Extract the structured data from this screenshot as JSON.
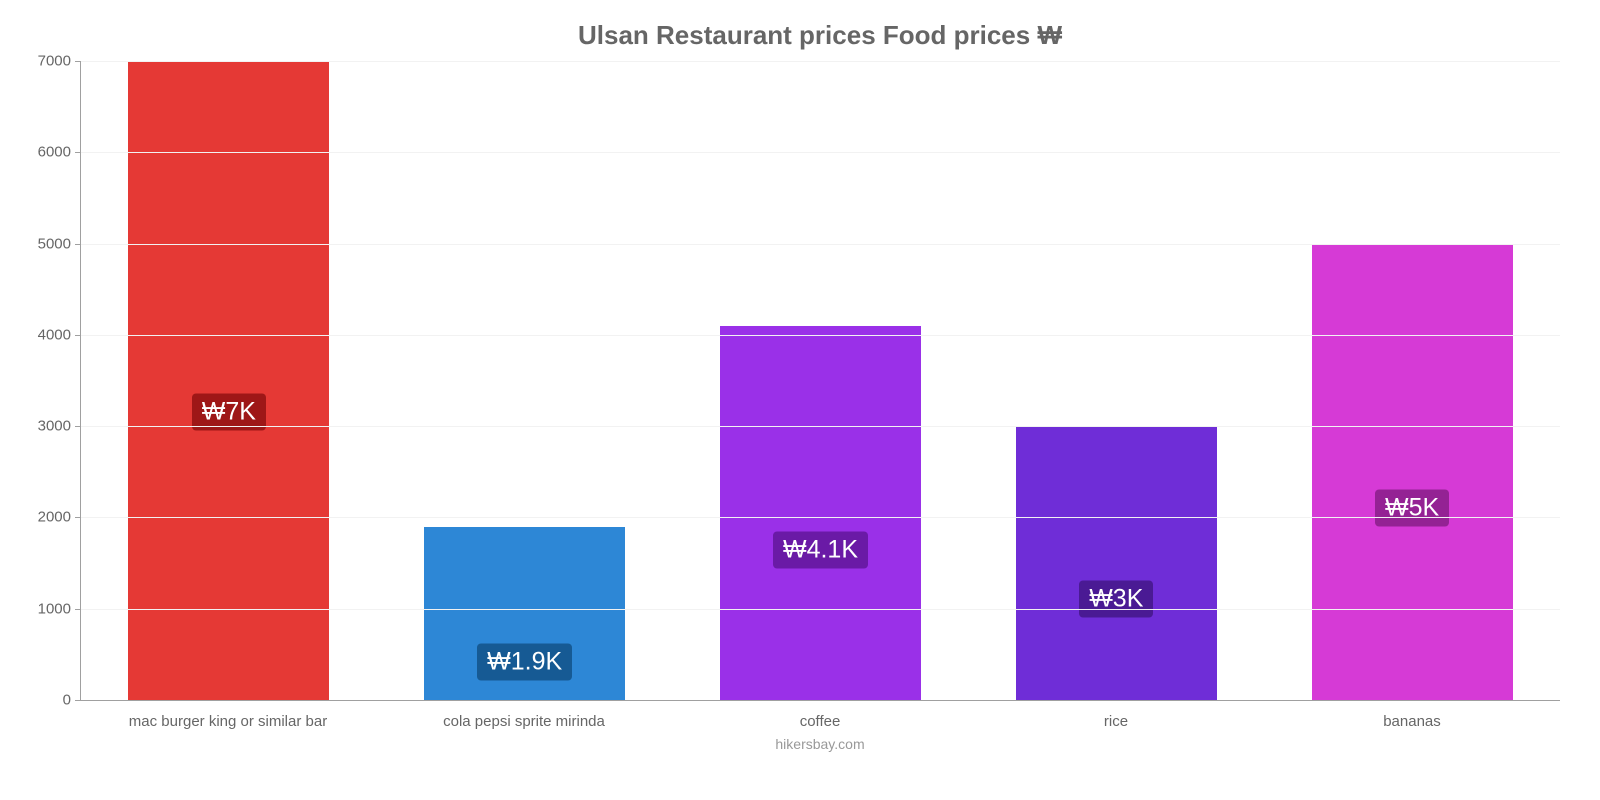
{
  "chart": {
    "type": "bar",
    "title": "Ulsan Restaurant prices Food prices ₩",
    "title_fontsize": 26,
    "title_color": "#666666",
    "footer": "hikersbay.com",
    "footer_fontsize": 14,
    "footer_color": "#999999",
    "background_color": "#ffffff",
    "grid_color": "#f2f2f2",
    "axis_line_color": "#a0a0a0",
    "label_fontsize": 15,
    "label_color": "#666666",
    "ylim": [
      0,
      7000
    ],
    "ytick_step": 1000,
    "yticks": [
      0,
      1000,
      2000,
      3000,
      4000,
      5000,
      6000,
      7000
    ],
    "bar_width": 0.68,
    "value_label_fontsize": 25,
    "categories": [
      "mac burger king or similar bar",
      "cola pepsi sprite mirinda",
      "coffee",
      "rice",
      "bananas"
    ],
    "values": [
      7000,
      1900,
      4100,
      3000,
      5000
    ],
    "value_labels": [
      "₩7K",
      "₩1.9K",
      "₩4.1K",
      "₩3K",
      "₩5K"
    ],
    "bar_colors": [
      "#e53935",
      "#2d87d6",
      "#9a30e8",
      "#6f2dd7",
      "#d63ad6"
    ],
    "value_label_bg": [
      "#9e1717",
      "#165a94",
      "#6a1aa6",
      "#4a1a94",
      "#942294"
    ],
    "value_label_offsets": [
      0.55,
      0.78,
      0.6,
      0.63,
      0.58
    ]
  }
}
